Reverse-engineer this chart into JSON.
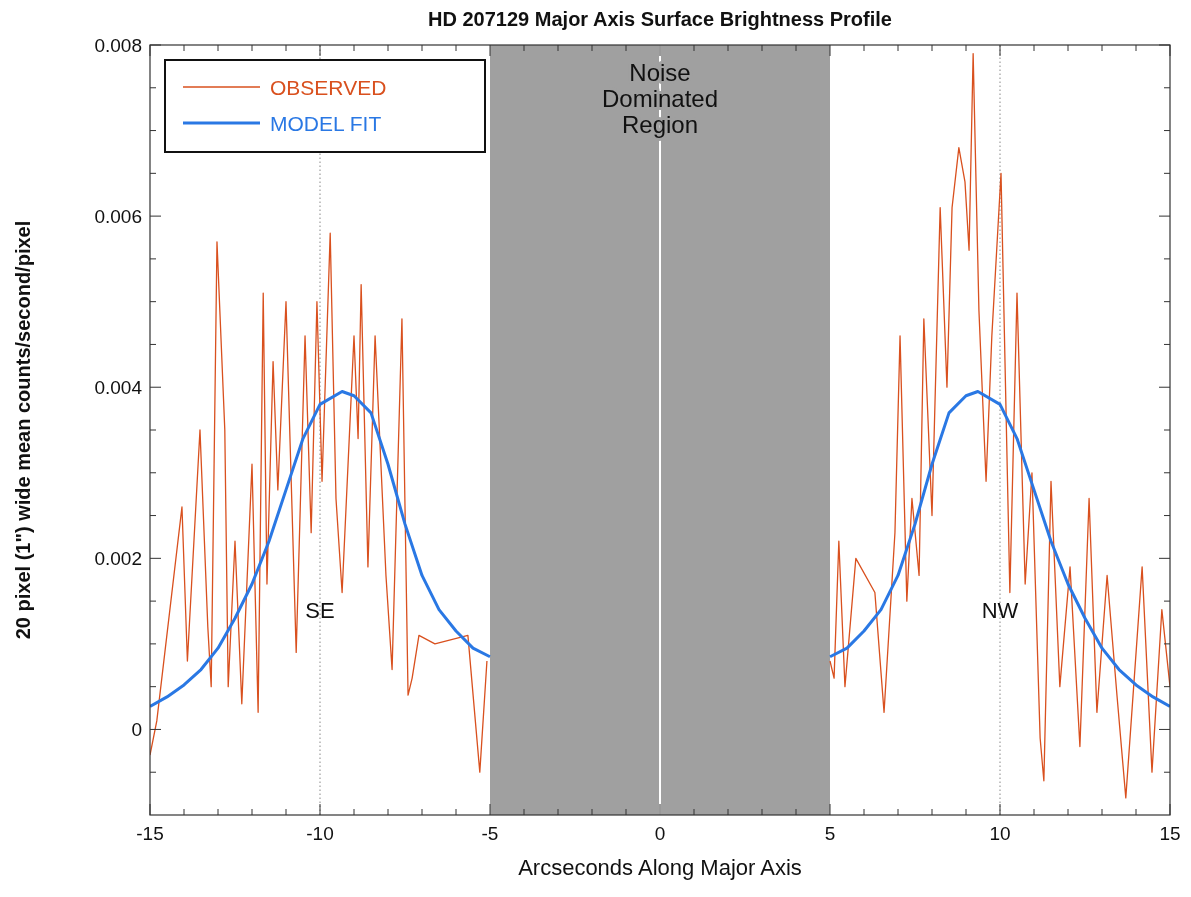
{
  "chart_data": {
    "type": "line",
    "title": "HD 207129 Major Axis Surface Brightness Profile",
    "xlabel": "Arcseconds Along Major Axis",
    "ylabel": "20 pixel (1\") wide mean counts/second/pixel",
    "xlim": [
      -15,
      15
    ],
    "ylim": [
      -0.001,
      0.008
    ],
    "xticks": [
      -15,
      {
        "value": -14,
        "label": null
      },
      {
        "value": -13,
        "label": null
      },
      {
        "value": -12,
        "label": null
      },
      {
        "value": -11,
        "label": null
      },
      -10,
      {
        "value": -9,
        "label": null
      },
      {
        "value": -8,
        "label": null
      },
      {
        "value": -7,
        "label": null
      },
      {
        "value": -6,
        "label": null
      },
      -5,
      {
        "value": -4,
        "label": null
      },
      {
        "value": -3,
        "label": null
      },
      {
        "value": -2,
        "label": null
      },
      {
        "value": -1,
        "label": null
      },
      0,
      {
        "value": 1,
        "label": null
      },
      {
        "value": 2,
        "label": null
      },
      {
        "value": 3,
        "label": null
      },
      {
        "value": 4,
        "label": null
      },
      5,
      {
        "value": 6,
        "label": null
      },
      {
        "value": 7,
        "label": null
      },
      {
        "value": 8,
        "label": null
      },
      {
        "value": 9,
        "label": null
      },
      10,
      {
        "value": 11,
        "label": null
      },
      {
        "value": 12,
        "label": null
      },
      {
        "value": 13,
        "label": null
      },
      {
        "value": 14,
        "label": null
      },
      15
    ],
    "yticks": [
      {
        "value": -0.0005,
        "label": null
      },
      0,
      {
        "value": 0.0005,
        "label": null
      },
      {
        "value": 0.001,
        "label": null
      },
      {
        "value": 0.0015,
        "label": null
      },
      0.002,
      {
        "value": 0.0025,
        "label": null
      },
      {
        "value": 0.003,
        "label": null
      },
      {
        "value": 0.0035,
        "label": null
      },
      0.004,
      {
        "value": 0.0045,
        "label": null
      },
      {
        "value": 0.005,
        "label": null
      },
      {
        "value": 0.0055,
        "label": null
      },
      0.006,
      {
        "value": 0.0065,
        "label": null
      },
      {
        "value": 0.007,
        "label": null
      },
      {
        "value": 0.0075,
        "label": null
      },
      0.008
    ],
    "grid": false,
    "legend": "top left",
    "line_style": "solid",
    "marker": "none",
    "series": [
      {
        "name": "OBSERVED",
        "color": "#d9501e",
        "x": [
          -15,
          -14.8,
          -14.06,
          -13.9,
          -13.53,
          -13.3,
          -13.2,
          -13.03,
          -12.8,
          -12.7,
          -12.5,
          -12.3,
          -12.0,
          -11.82,
          -11.67,
          -11.56,
          -11.38,
          -11.24,
          -11.0,
          -10.7,
          -10.44,
          -10.26,
          -10.09,
          -9.94,
          -9.7,
          -9.53,
          -9.35,
          -9.0,
          -8.88,
          -8.79,
          -8.59,
          -8.38,
          -8.06,
          -7.88,
          -7.59,
          -7.41,
          -7.29,
          -7.09,
          -6.62,
          -5.65,
          -5.3,
          -5.09,
          0,
          5.0,
          5.12,
          5.26,
          5.44,
          5.76,
          6.32,
          6.59,
          6.91,
          7.06,
          7.26,
          7.41,
          7.62,
          7.76,
          8.0,
          8.24,
          8.44,
          8.59,
          8.79,
          8.97,
          9.09,
          9.21,
          9.38,
          9.59,
          9.76,
          10.03,
          10.29,
          10.5,
          10.74,
          10.94,
          11.18,
          11.29,
          11.5,
          11.76,
          12.06,
          12.35,
          12.62,
          12.85,
          13.15,
          13.44,
          13.7,
          14.18,
          14.47,
          14.76,
          15
        ],
        "values": [
          -0.0003,
          0.0001,
          0.0026,
          0.0008,
          0.0035,
          0.0012,
          0.0005,
          0.0057,
          0.0035,
          0.0005,
          0.0022,
          0.0003,
          0.0031,
          0.0002,
          0.0051,
          0.0017,
          0.0043,
          0.0028,
          0.005,
          0.0009,
          0.0046,
          0.0023,
          0.005,
          0.0029,
          0.0058,
          0.0027,
          0.0016,
          0.0046,
          0.0034,
          0.0052,
          0.0019,
          0.0046,
          0.0018,
          0.0007,
          0.0048,
          0.0004,
          0.0006,
          0.0011,
          0.001,
          0.0011,
          -0.0005,
          0.0008,
          null,
          0.0008,
          0.0006,
          0.0022,
          0.0005,
          0.002,
          0.0016,
          0.0002,
          0.0023,
          0.0046,
          0.0015,
          0.0027,
          0.0018,
          0.0048,
          0.0025,
          0.0061,
          0.004,
          0.0061,
          0.0068,
          0.0064,
          0.0056,
          0.0079,
          0.0049,
          0.0029,
          0.0046,
          0.0065,
          0.0016,
          0.0051,
          0.0017,
          0.003,
          -0.0001,
          -0.0006,
          0.0029,
          0.0005,
          0.0019,
          -0.0002,
          0.0027,
          0.0002,
          0.0018,
          0.0004,
          -0.0008,
          0.0019,
          -0.0005,
          0.0014,
          0.0005
        ]
      },
      {
        "name": "MODEL FIT",
        "color": "#2a78e4",
        "x": [
          -15,
          -14.5,
          -14,
          -13.5,
          -13,
          -12.5,
          -12,
          -11.5,
          -11,
          -10.5,
          -10,
          -9.35,
          -9,
          -8.5,
          -8,
          -7.5,
          -7,
          -6.5,
          -6,
          -5.5,
          -5,
          0,
          5,
          5.5,
          6,
          6.5,
          7,
          7.5,
          8,
          8.5,
          9,
          9.35,
          10,
          10.5,
          11,
          11.5,
          12,
          12.5,
          13,
          13.5,
          14,
          14.5,
          15
        ],
        "values": [
          0.00027,
          0.00038,
          0.00052,
          0.0007,
          0.00095,
          0.0013,
          0.0017,
          0.0022,
          0.0028,
          0.0034,
          0.0038,
          0.00395,
          0.0039,
          0.0037,
          0.0031,
          0.0024,
          0.0018,
          0.0014,
          0.00115,
          0.00095,
          0.00085,
          null,
          0.00085,
          0.00095,
          0.00115,
          0.0014,
          0.0018,
          0.0024,
          0.0031,
          0.0037,
          0.0039,
          0.00395,
          0.0038,
          0.0034,
          0.0028,
          0.0022,
          0.0017,
          0.0013,
          0.00095,
          0.0007,
          0.00052,
          0.00038,
          0.00027
        ]
      }
    ],
    "bands": [
      {
        "axis": "x",
        "from": -5,
        "to": 5,
        "label": "Noise Dominated Region",
        "color": "#a0a0a0"
      }
    ],
    "ref_lines": [
      {
        "axis": "x",
        "value": -10,
        "color": "#888888",
        "line_style": "dotted"
      },
      {
        "axis": "x",
        "value": 10,
        "color": "#888888",
        "line_style": "dotted"
      },
      {
        "axis": "x",
        "value": 0,
        "color": "#ffffff",
        "line_style": "solid"
      }
    ],
    "annotations": [
      {
        "text": "SE",
        "x": -10,
        "y": 0.0013
      },
      {
        "text": "NW",
        "x": 10,
        "y": 0.0013
      }
    ]
  }
}
